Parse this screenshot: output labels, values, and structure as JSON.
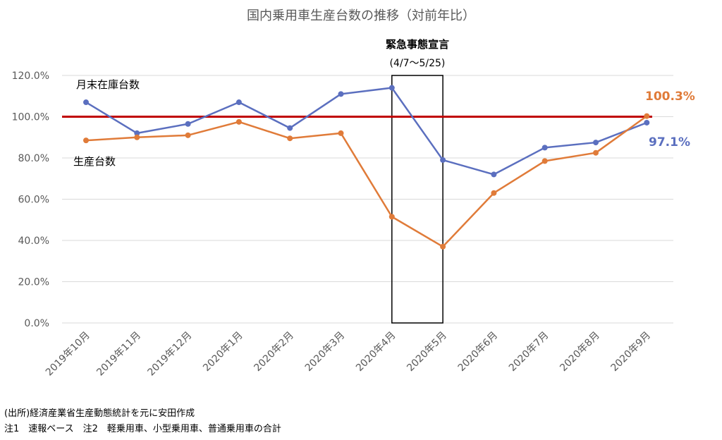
{
  "chart_data": {
    "type": "line",
    "title": "国内乗用車生産台数の推移（対前年比）",
    "categories": [
      "2019年10月",
      "2019年11月",
      "2019年12月",
      "2020年1月",
      "2020年2月",
      "2020年3月",
      "2020年4月",
      "2020年5月",
      "2020年6月",
      "2020年7月",
      "2020年8月",
      "2020年9月"
    ],
    "series": [
      {
        "name": "月末在庫台数",
        "color": "#5b6fbf",
        "values": [
          107.0,
          92.0,
          96.5,
          107.0,
          94.5,
          111.0,
          114.0,
          79.0,
          72.0,
          85.0,
          87.5,
          97.1
        ]
      },
      {
        "name": "生産台数",
        "color": "#e07b39",
        "values": [
          88.5,
          90.0,
          91.0,
          97.5,
          89.5,
          92.0,
          51.5,
          37.0,
          63.0,
          78.5,
          82.5,
          100.3
        ]
      }
    ],
    "ylim": [
      0,
      120
    ],
    "yticks": [
      "0.0%",
      "20.0%",
      "40.0%",
      "60.0%",
      "80.0%",
      "100.0%",
      "120.0%"
    ],
    "ytick_values": [
      0,
      20,
      40,
      60,
      80,
      100,
      120
    ],
    "grid": true,
    "reference_line": {
      "value": 100,
      "color": "#c00000"
    },
    "highlight": {
      "from_index": 6,
      "to_index": 7,
      "label": "緊急事態宣言",
      "sublabel": "(4/7～5/25)"
    },
    "end_labels": [
      {
        "text": "100.3%",
        "color": "#e07b39"
      },
      {
        "text": "97.1%",
        "color": "#5b6fbf"
      }
    ]
  },
  "footer": {
    "line1": "(出所)経済産業省生産動態統計を元に安田作成",
    "line2": "注1　速報ベース　注2　軽乗用車、小型乗用車、普通乗用車の合計"
  }
}
